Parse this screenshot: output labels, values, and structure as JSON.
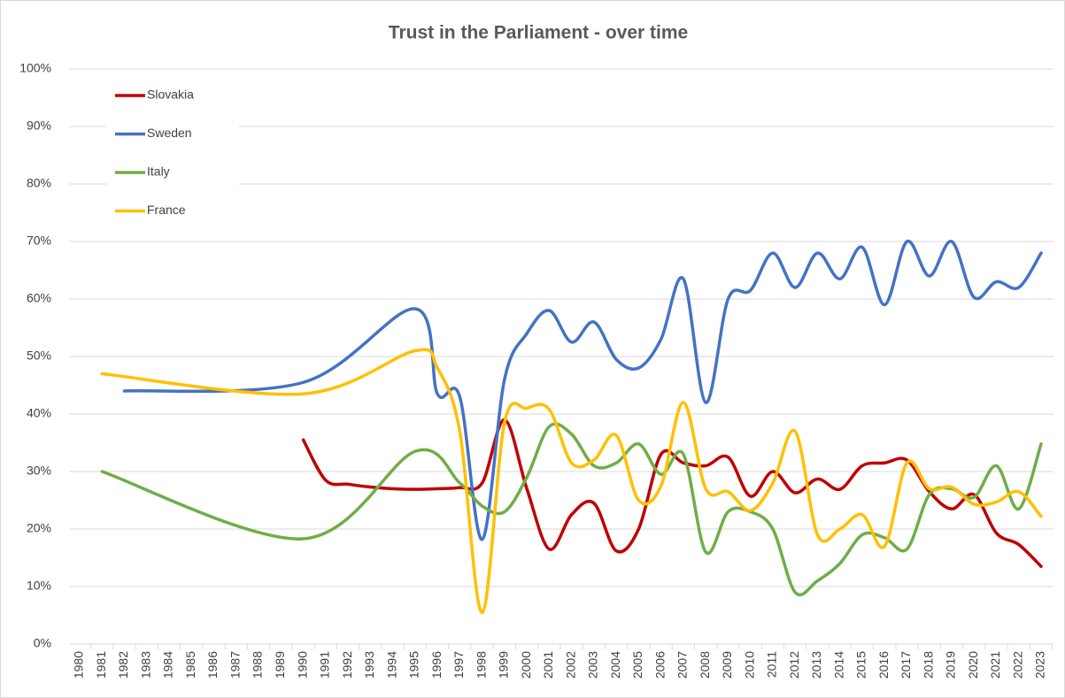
{
  "chart_data": {
    "type": "line",
    "title": "Trust in the Parliament - over time",
    "xlim": [
      1980,
      2023
    ],
    "xticks": [
      1980,
      1981,
      1982,
      1983,
      1984,
      1985,
      1986,
      1987,
      1988,
      1989,
      1990,
      1991,
      1992,
      1993,
      1994,
      1995,
      1996,
      1997,
      1998,
      1999,
      2000,
      2001,
      2002,
      2003,
      2004,
      2005,
      2006,
      2007,
      2008,
      2009,
      2010,
      2011,
      2012,
      2013,
      2014,
      2015,
      2016,
      2017,
      2018,
      2019,
      2020,
      2021,
      2022,
      2023
    ],
    "ylim": [
      0,
      100
    ],
    "yticks": [
      {
        "value": 0,
        "label": "0%"
      },
      {
        "value": 10,
        "label": "10%"
      },
      {
        "value": 20,
        "label": "20%"
      },
      {
        "value": 30,
        "label": "30%"
      },
      {
        "value": 40,
        "label": "40%"
      },
      {
        "value": 50,
        "label": "50%"
      },
      {
        "value": 60,
        "label": "60%"
      },
      {
        "value": 70,
        "label": "70%"
      },
      {
        "value": 80,
        "label": "80%"
      },
      {
        "value": 90,
        "label": "90%"
      },
      {
        "value": 100,
        "label": "100%"
      }
    ],
    "grid": true,
    "legend": "upper left",
    "smooth": true,
    "series": [
      {
        "name": "Slovakia",
        "color": "#c00000",
        "x": [
          1990,
          1991,
          1992,
          1993,
          1994,
          1995,
          1996,
          1997,
          1998,
          1999,
          2000,
          2001,
          2002,
          2003,
          2004,
          2005,
          2006,
          2007,
          2008,
          2009,
          2010,
          2011,
          2012,
          2013,
          2014,
          2015,
          2016,
          2017,
          2018,
          2019,
          2020,
          2021,
          2022,
          2023
        ],
        "values": [
          35.5,
          28.5,
          27.8,
          27.3,
          27,
          26.9,
          27,
          27.2,
          28,
          39,
          27,
          16.5,
          22.5,
          24.5,
          16.2,
          20,
          33,
          31.5,
          31,
          32.5,
          25.7,
          30,
          26.3,
          28.7,
          26.9,
          31,
          31.5,
          32,
          26.5,
          23.5,
          26,
          19.3,
          17.3,
          13.5
        ]
      },
      {
        "name": "Sweden",
        "color": "#4472c4",
        "x": [
          1982,
          1990,
          1995,
          1996,
          1997,
          1998,
          1999,
          2000,
          2001,
          2002,
          2003,
          2004,
          2005,
          2006,
          2007,
          2008,
          2009,
          2010,
          2011,
          2012,
          2013,
          2014,
          2015,
          2016,
          2017,
          2018,
          2019,
          2020,
          2021,
          2022,
          2023
        ],
        "values": [
          44,
          45.5,
          58.3,
          43.5,
          43,
          18.2,
          46,
          54,
          58,
          52.5,
          56,
          49.5,
          48,
          53,
          63.5,
          42,
          60,
          61.5,
          68,
          62,
          68,
          63.5,
          69,
          59,
          70,
          64,
          70,
          60.3,
          63,
          62,
          68
        ]
      },
      {
        "name": "Italy",
        "color": "#70ad47",
        "x": [
          1981,
          1990,
          1995,
          1997,
          1998,
          1999,
          2000,
          2001,
          2002,
          2003,
          2004,
          2005,
          2006,
          2007,
          2008,
          2009,
          2010,
          2011,
          2012,
          2013,
          2014,
          2015,
          2016,
          2017,
          2018,
          2019,
          2020,
          2021,
          2022,
          2023
        ],
        "values": [
          30,
          18.3,
          33.5,
          28,
          24,
          23,
          29,
          37.8,
          36.5,
          31,
          31.5,
          34.8,
          29.5,
          33,
          16,
          23,
          23,
          20,
          9,
          11,
          14,
          19,
          18.5,
          16.5,
          26,
          27,
          25.5,
          31,
          23.5,
          34.8
        ]
      },
      {
        "name": "France",
        "color": "#ffc000",
        "x": [
          1981,
          1990,
          1995,
          1996,
          1997,
          1998,
          1999,
          2000,
          2001,
          2002,
          2003,
          2004,
          2005,
          2006,
          2007,
          2008,
          2009,
          2010,
          2011,
          2012,
          2013,
          2014,
          2015,
          2016,
          2017,
          2018,
          2019,
          2020,
          2021,
          2022,
          2023
        ],
        "values": [
          47,
          43.5,
          51,
          48,
          37,
          5.5,
          38.5,
          41,
          40.8,
          31.5,
          32,
          36.3,
          25,
          27.5,
          42,
          27,
          26.5,
          23.2,
          28,
          37,
          19,
          20,
          22.5,
          17,
          31.5,
          27,
          27.3,
          24.3,
          24.7,
          26.5,
          22.2
        ]
      }
    ]
  }
}
